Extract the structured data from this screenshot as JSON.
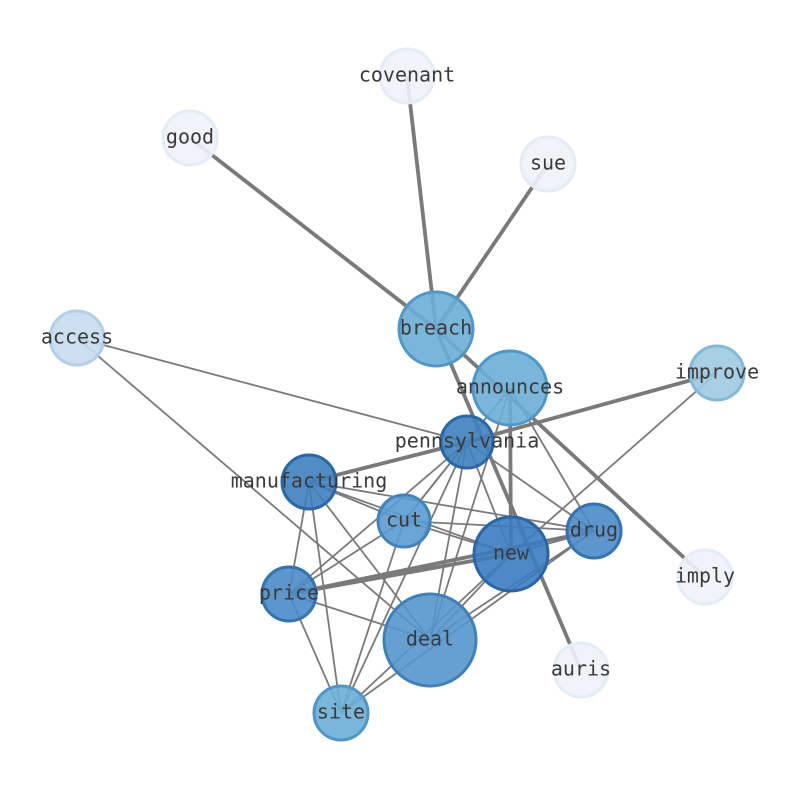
{
  "nodes": [
    {
      "label": "covenant"
    },
    {
      "label": "good"
    },
    {
      "label": "sue"
    },
    {
      "label": "access"
    },
    {
      "label": "breach"
    },
    {
      "label": "announces"
    },
    {
      "label": "improve"
    },
    {
      "label": "pennsylvania"
    },
    {
      "label": "manufacturing"
    },
    {
      "label": "cut"
    },
    {
      "label": "drug"
    },
    {
      "label": "new"
    },
    {
      "label": "price"
    },
    {
      "label": "deal"
    },
    {
      "label": "site"
    },
    {
      "label": "imply"
    },
    {
      "label": "auris"
    }
  ]
}
